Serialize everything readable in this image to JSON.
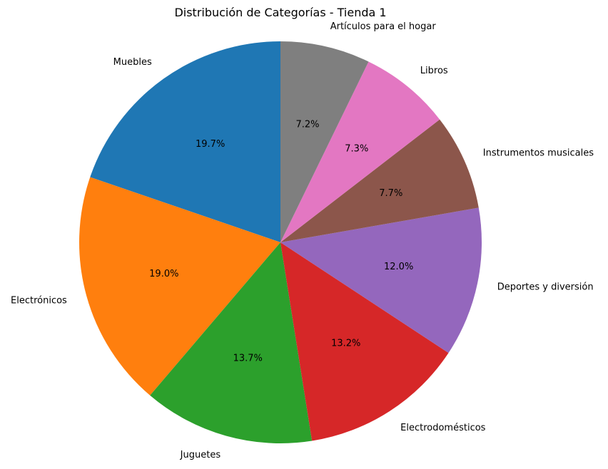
{
  "chart_data": {
    "type": "pie",
    "title": "Distribución de Categorías - Tienda 1",
    "start_angle_deg": 90,
    "direction": "counterclockwise",
    "legend": "none",
    "grid": false,
    "slices": [
      {
        "label": "Muebles",
        "value": 19.7,
        "pct_label": "19.7%",
        "color": "#1f77b4"
      },
      {
        "label": "Electrónicos",
        "value": 19.0,
        "pct_label": "19.0%",
        "color": "#ff7f0e"
      },
      {
        "label": "Juguetes",
        "value": 13.7,
        "pct_label": "13.7%",
        "color": "#2ca02c"
      },
      {
        "label": "Electrodomésticos",
        "value": 13.2,
        "pct_label": "13.2%",
        "color": "#d62728"
      },
      {
        "label": "Deportes y diversión",
        "value": 12.0,
        "pct_label": "12.0%",
        "color": "#9467bd"
      },
      {
        "label": "Instrumentos musicales",
        "value": 7.7,
        "pct_label": "7.7%",
        "color": "#8c564b"
      },
      {
        "label": "Libros",
        "value": 7.3,
        "pct_label": "7.3%",
        "color": "#e377c2"
      },
      {
        "label": "Artículos para el hogar",
        "value": 7.2,
        "pct_label": "7.2%",
        "color": "#7f7f7f"
      }
    ]
  }
}
